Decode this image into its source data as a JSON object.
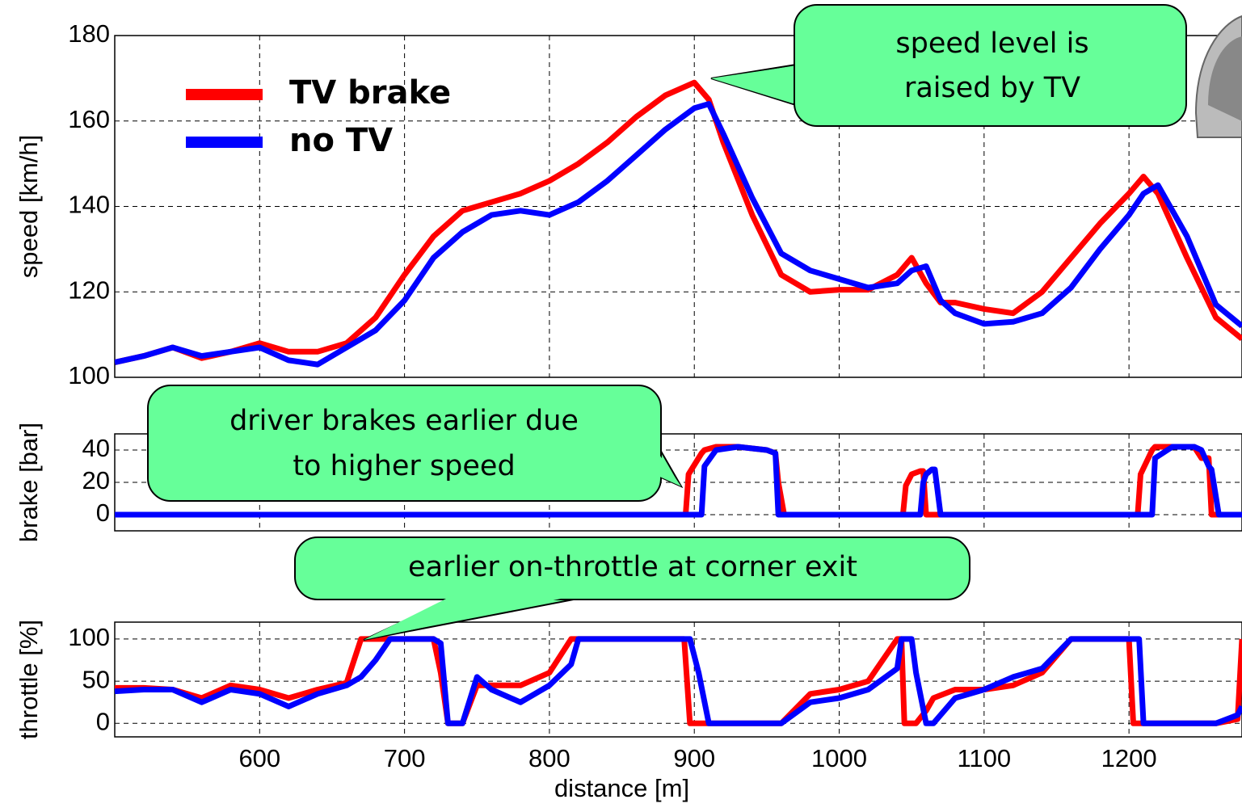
{
  "chart_data": [
    {
      "type": "line",
      "ylabel": "speed [km/h]",
      "x": [
        500,
        520,
        540,
        560,
        580,
        600,
        620,
        640,
        660,
        680,
        700,
        720,
        740,
        760,
        780,
        800,
        820,
        840,
        860,
        880,
        900,
        910,
        920,
        940,
        960,
        980,
        1000,
        1020,
        1040,
        1050,
        1060,
        1070,
        1080,
        1100,
        1120,
        1140,
        1160,
        1180,
        1200,
        1210,
        1220,
        1240,
        1260,
        1278
      ],
      "series": [
        {
          "name": "TV brake",
          "color": "#ff0000",
          "values": [
            103.5,
            105,
            107,
            104.5,
            106,
            108,
            106,
            106,
            108,
            114,
            124,
            133,
            139,
            141,
            143,
            146,
            150,
            155,
            161,
            166,
            169,
            165,
            155,
            138,
            124,
            120,
            120.5,
            120.5,
            124,
            128,
            122,
            117.5,
            117.5,
            116,
            115,
            120,
            128,
            136,
            143,
            147,
            143,
            128,
            114,
            109
          ]
        },
        {
          "name": "no TV",
          "color": "#0000ff",
          "values": [
            103.5,
            105,
            107,
            105,
            106,
            107,
            104,
            103,
            107,
            111,
            118,
            128,
            134,
            138,
            139,
            138,
            141,
            146,
            152,
            158,
            163,
            164,
            157,
            142,
            129,
            125,
            123,
            121,
            122,
            125,
            126,
            118,
            115,
            112.5,
            113,
            115,
            121,
            130,
            138,
            143,
            145,
            133,
            117,
            112
          ]
        }
      ],
      "xlim": [
        500,
        1278
      ],
      "xticks": [
        600,
        700,
        800,
        900,
        1000,
        1100,
        1200
      ],
      "ylim": [
        100,
        180
      ],
      "yticks": [
        100,
        120,
        140,
        160,
        180
      ],
      "grid": true,
      "legend": "upper-left",
      "annotations": [
        {
          "lines": [
            "speed level is",
            "raised by TV"
          ],
          "color": "#66ff99"
        }
      ]
    },
    {
      "type": "line",
      "ylabel": "brake [bar]",
      "x": [
        500,
        894,
        896,
        905,
        907,
        915,
        930,
        950,
        956,
        958,
        962,
        1040,
        1044,
        1046,
        1050,
        1056,
        1058,
        1060,
        1064,
        1066,
        1070,
        1072,
        1200,
        1206,
        1208,
        1216,
        1218,
        1230,
        1245,
        1250,
        1255,
        1257,
        1262,
        1278
      ],
      "series": [
        {
          "name": "TV brake",
          "color": "#ff0000",
          "values": [
            0,
            0,
            25,
            38,
            40,
            42,
            42,
            40,
            38,
            20,
            0,
            0,
            0,
            18,
            25,
            27,
            27,
            0,
            0,
            0,
            0,
            0,
            0,
            0,
            25,
            40,
            42,
            42,
            42,
            35,
            35,
            0,
            0,
            0
          ]
        },
        {
          "name": "no TV",
          "color": "#0000ff",
          "values": [
            0,
            0,
            0,
            0,
            30,
            40,
            42,
            40,
            38,
            0,
            0,
            0,
            0,
            0,
            0,
            0,
            20,
            25,
            28,
            28,
            0,
            0,
            0,
            0,
            0,
            0,
            35,
            42,
            42,
            40,
            30,
            28,
            0,
            0
          ]
        }
      ],
      "xlim": [
        500,
        1278
      ],
      "xticks": [
        600,
        700,
        800,
        900,
        1000,
        1100,
        1200
      ],
      "ylim": [
        -10,
        50
      ],
      "yticks": [
        0,
        20,
        40
      ],
      "grid": true,
      "annotations": [
        {
          "lines": [
            "driver brakes earlier due",
            "to higher speed"
          ],
          "color": "#66ff99"
        }
      ]
    },
    {
      "type": "line",
      "ylabel": "throttle [%]",
      "xlabel": "distance [m]",
      "x": [
        500,
        520,
        540,
        560,
        580,
        600,
        620,
        640,
        660,
        670,
        680,
        690,
        700,
        710,
        720,
        725,
        730,
        740,
        750,
        760,
        780,
        800,
        815,
        820,
        840,
        860,
        880,
        893,
        897,
        903,
        910,
        940,
        960,
        980,
        1000,
        1020,
        1040,
        1043,
        1045,
        1050,
        1053,
        1060,
        1065,
        1080,
        1100,
        1120,
        1140,
        1160,
        1180,
        1200,
        1203,
        1207,
        1210,
        1230,
        1260,
        1275,
        1278
      ],
      "series": [
        {
          "name": "TV brake",
          "color": "#ff0000",
          "values": [
            42,
            42,
            40,
            30,
            45,
            40,
            30,
            40,
            48,
            100,
            100,
            100,
            100,
            100,
            100,
            60,
            0,
            0,
            45,
            45,
            45,
            60,
            100,
            100,
            100,
            100,
            100,
            100,
            0,
            0,
            0,
            0,
            0,
            35,
            40,
            50,
            100,
            100,
            0,
            0,
            0,
            15,
            30,
            40,
            40,
            45,
            60,
            100,
            100,
            100,
            0,
            0,
            0,
            0,
            0,
            5,
            100
          ]
        },
        {
          "name": "no TV",
          "color": "#0000ff",
          "values": [
            38,
            40,
            40,
            25,
            40,
            35,
            20,
            35,
            45,
            55,
            75,
            100,
            100,
            100,
            100,
            95,
            0,
            0,
            55,
            40,
            25,
            45,
            70,
            100,
            100,
            100,
            100,
            100,
            100,
            60,
            0,
            0,
            0,
            25,
            30,
            40,
            65,
            100,
            100,
            100,
            60,
            0,
            0,
            30,
            40,
            55,
            65,
            100,
            100,
            100,
            100,
            100,
            0,
            0,
            0,
            10,
            20
          ]
        }
      ],
      "xlim": [
        500,
        1278
      ],
      "xticks": [
        600,
        700,
        800,
        900,
        1000,
        1100,
        1200
      ],
      "ylim": [
        -16,
        120
      ],
      "yticks": [
        0,
        50,
        100
      ],
      "grid": true,
      "annotations": [
        {
          "lines": [
            "earlier on-throttle at corner exit"
          ],
          "color": "#66ff99"
        }
      ]
    }
  ]
}
